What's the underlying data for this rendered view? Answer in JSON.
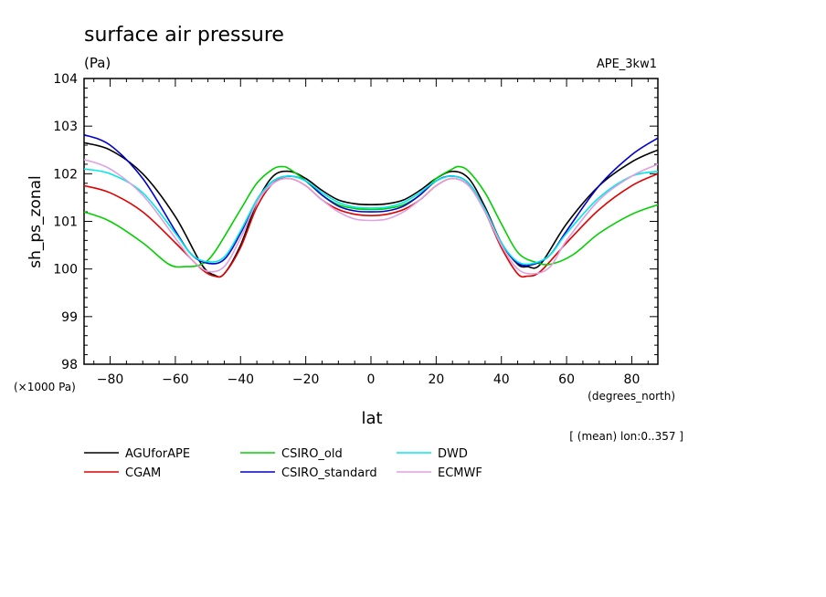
{
  "chart_data": {
    "type": "line",
    "title": "surface air pressure",
    "units": "(Pa)",
    "experiment": "APE_3kw1",
    "xlabel": "lat",
    "xunits": "(degrees_north)",
    "ylabel": "sh_ps_zonal",
    "yscale_label": "(×1000 Pa)",
    "subset_note": "[ (mean) lon:0..357 ]",
    "xlim": [
      -88,
      88
    ],
    "ylim": [
      98,
      104
    ],
    "xticks": [
      -80,
      -60,
      -40,
      -20,
      0,
      20,
      40,
      60,
      80
    ],
    "xtick_labels": [
      "−80",
      "−60",
      "−40",
      "−20",
      "0",
      "20",
      "40",
      "60",
      "80"
    ],
    "yticks": [
      98,
      99,
      100,
      101,
      102,
      103,
      104
    ],
    "ytick_labels": [
      "98",
      "99",
      "100",
      "101",
      "102",
      "103",
      "104"
    ],
    "series": [
      {
        "name": "AGUforAPE",
        "color": "#000000",
        "x": [
          -88,
          -80,
          -70,
          -60,
          -52,
          -48,
          -45,
          -40,
          -35,
          -30,
          -25,
          -20,
          -15,
          -10,
          -5,
          0,
          5,
          10,
          15,
          20,
          25,
          30,
          35,
          40,
          45,
          48,
          52,
          60,
          70,
          80,
          88
        ],
        "y": [
          102.65,
          102.5,
          102.0,
          101.1,
          100.1,
          99.87,
          99.9,
          100.5,
          101.4,
          101.95,
          102.05,
          101.9,
          101.65,
          101.45,
          101.37,
          101.35,
          101.37,
          101.45,
          101.65,
          101.9,
          102.05,
          101.9,
          101.3,
          100.55,
          100.1,
          100.05,
          100.1,
          100.95,
          101.75,
          102.25,
          102.5
        ]
      },
      {
        "name": "CGAM",
        "color": "#e00000",
        "x": [
          -88,
          -80,
          -70,
          -60,
          -52,
          -48,
          -45,
          -40,
          -35,
          -30,
          -25,
          -20,
          -15,
          -10,
          -5,
          0,
          5,
          10,
          15,
          20,
          25,
          30,
          35,
          40,
          45,
          48,
          52,
          60,
          70,
          80,
          88
        ],
        "y": [
          101.75,
          101.6,
          101.2,
          100.55,
          100.0,
          99.85,
          99.9,
          100.45,
          101.3,
          101.8,
          101.9,
          101.75,
          101.45,
          101.25,
          101.15,
          101.12,
          101.15,
          101.25,
          101.45,
          101.75,
          101.9,
          101.75,
          101.2,
          100.45,
          99.9,
          99.85,
          99.95,
          100.55,
          101.25,
          101.75,
          102.0
        ]
      },
      {
        "name": "CSIRO_old",
        "color": "#00d000",
        "x": [
          -88,
          -80,
          -70,
          -62,
          -57,
          -52,
          -48,
          -40,
          -35,
          -30,
          -27,
          -25,
          -20,
          -15,
          -10,
          -5,
          0,
          5,
          10,
          15,
          20,
          25,
          27,
          30,
          35,
          40,
          45,
          50,
          55,
          62,
          70,
          80,
          88
        ],
        "y": [
          101.2,
          101.0,
          100.55,
          100.1,
          100.05,
          100.1,
          100.35,
          101.25,
          101.8,
          102.1,
          102.15,
          102.1,
          101.85,
          101.55,
          101.35,
          101.27,
          101.25,
          101.27,
          101.35,
          101.55,
          101.9,
          102.1,
          102.15,
          102.05,
          101.6,
          100.95,
          100.35,
          100.15,
          100.1,
          100.3,
          100.75,
          101.15,
          101.35
        ]
      },
      {
        "name": "CSIRO_standard",
        "color": "#0000cc",
        "x": [
          -88,
          -80,
          -70,
          -60,
          -55,
          -50,
          -45,
          -40,
          -35,
          -30,
          -25,
          -20,
          -15,
          -10,
          -5,
          0,
          5,
          10,
          15,
          20,
          25,
          30,
          35,
          40,
          45,
          50,
          55,
          60,
          70,
          80,
          88
        ],
        "y": [
          102.82,
          102.6,
          101.9,
          100.8,
          100.3,
          100.12,
          100.2,
          100.75,
          101.45,
          101.85,
          101.95,
          101.85,
          101.55,
          101.32,
          101.22,
          101.2,
          101.22,
          101.32,
          101.55,
          101.85,
          101.95,
          101.8,
          101.25,
          100.55,
          100.12,
          100.1,
          100.3,
          100.8,
          101.75,
          102.4,
          102.75
        ]
      },
      {
        "name": "DWD",
        "color": "#00e8e8",
        "x": [
          -88,
          -80,
          -70,
          -60,
          -55,
          -50,
          -45,
          -40,
          -35,
          -30,
          -25,
          -20,
          -15,
          -10,
          -5,
          0,
          5,
          10,
          15,
          20,
          25,
          30,
          35,
          40,
          45,
          50,
          55,
          60,
          70,
          80,
          88
        ],
        "y": [
          102.1,
          102.0,
          101.6,
          100.75,
          100.3,
          100.15,
          100.25,
          100.8,
          101.45,
          101.85,
          101.95,
          101.85,
          101.6,
          101.4,
          101.3,
          101.28,
          101.3,
          101.4,
          101.6,
          101.85,
          101.95,
          101.8,
          101.25,
          100.55,
          100.15,
          100.12,
          100.3,
          100.75,
          101.5,
          101.95,
          102.05
        ]
      },
      {
        "name": "ECMWF",
        "color": "#e0a0e0",
        "x": [
          -88,
          -80,
          -70,
          -60,
          -55,
          -50,
          -45,
          -40,
          -35,
          -30,
          -25,
          -20,
          -15,
          -10,
          -5,
          0,
          5,
          10,
          15,
          20,
          25,
          30,
          35,
          40,
          45,
          50,
          55,
          60,
          70,
          80,
          88
        ],
        "y": [
          102.3,
          102.1,
          101.55,
          100.65,
          100.2,
          99.95,
          100.05,
          100.65,
          101.4,
          101.8,
          101.9,
          101.75,
          101.45,
          101.2,
          101.05,
          101.02,
          101.05,
          101.2,
          101.45,
          101.75,
          101.9,
          101.75,
          101.2,
          100.5,
          100.0,
          99.9,
          100.05,
          100.6,
          101.45,
          101.95,
          102.2
        ]
      }
    ]
  }
}
